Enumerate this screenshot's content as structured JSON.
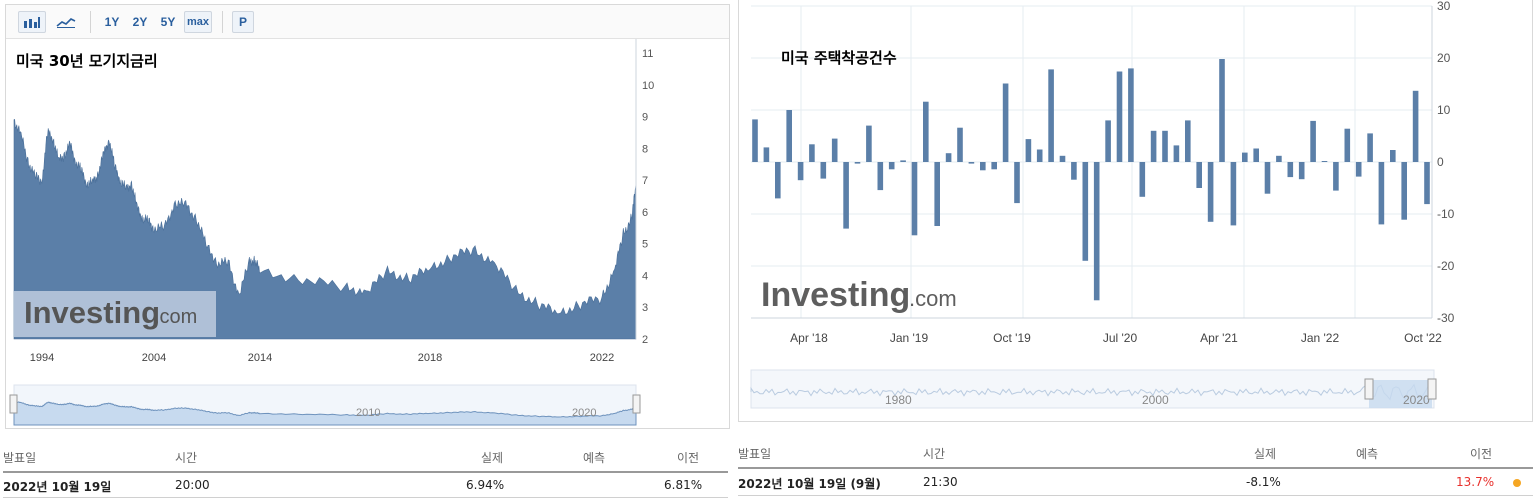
{
  "left": {
    "toolbar": {
      "bar_icon": "bar-chart-icon",
      "line_icon": "line-chart-icon",
      "ranges": [
        "1Y",
        "2Y",
        "5Y",
        "max"
      ],
      "p_label": "P"
    },
    "title": "미국 30년 모기지금리",
    "watermark": {
      "brand": "Investing",
      "suffix": ".com"
    },
    "navigator_labels": [
      "2010",
      "2020"
    ],
    "chart_data": {
      "type": "area",
      "x_ticks": [
        "1994",
        "2004",
        "2014",
        "2018",
        "2022"
      ],
      "y_ticks": [
        "2",
        "3",
        "4",
        "5",
        "6",
        "7",
        "8",
        "9",
        "10",
        "11"
      ],
      "ylim": [
        2,
        11
      ],
      "series_color": "#5b7fa8",
      "x": [
        1992.0,
        1992.5,
        1993.0,
        1993.5,
        1994.0,
        1994.5,
        1995.0,
        1995.5,
        1996.0,
        1996.5,
        1997.0,
        1997.5,
        1998.0,
        1998.5,
        1999.0,
        1999.5,
        2000.0,
        2000.5,
        2001.0,
        2001.5,
        2002.0,
        2002.5,
        2003.0,
        2003.5,
        2004.0,
        2005.0,
        2006.0,
        2007.0,
        2008.0,
        2009.0,
        2010.0,
        2011.0,
        2012.0,
        2013.0,
        2013.5,
        2014.0,
        2015.0,
        2016.0,
        2016.5,
        2017.0,
        2017.5,
        2018.0,
        2018.5,
        2019.0,
        2019.5,
        2020.0,
        2020.5,
        2021.0,
        2021.5,
        2022.0,
        2022.3,
        2022.5,
        2022.7,
        2022.8
      ],
      "values": [
        8.9,
        8.4,
        7.6,
        7.1,
        7.0,
        8.5,
        8.3,
        7.6,
        7.8,
        8.1,
        7.6,
        7.3,
        6.9,
        6.9,
        7.2,
        7.8,
        8.3,
        7.4,
        7.0,
        6.7,
        6.9,
        6.1,
        5.8,
        5.7,
        5.5,
        5.5,
        6.3,
        6.2,
        5.8,
        4.9,
        4.4,
        4.4,
        3.4,
        4.4,
        4.5,
        4.1,
        3.9,
        3.6,
        3.5,
        4.1,
        3.9,
        4.2,
        4.6,
        4.8,
        4.4,
        3.5,
        3.1,
        2.8,
        3.1,
        3.3,
        4.2,
        5.3,
        5.8,
        6.9
      ]
    },
    "table": {
      "headers": [
        "발표일",
        "시간",
        "실제",
        "예측",
        "이전"
      ],
      "row": [
        "2022년 10월 19일",
        "20:00",
        "6.94%",
        "",
        "6.81%"
      ]
    }
  },
  "right": {
    "title": "미국 주택착공건수",
    "watermark": {
      "brand": "Investing",
      "suffix": ".com"
    },
    "navigator_labels": [
      "1980",
      "2000",
      "2020"
    ],
    "chart_data": {
      "type": "bar",
      "x_ticks": [
        "Apr '18",
        "Jan '19",
        "Oct '19",
        "Jul '20",
        "Apr '21",
        "Jan '22",
        "Oct '22"
      ],
      "y_ticks": [
        "30",
        "20",
        "10",
        "0",
        "-10",
        "-20",
        "-30"
      ],
      "ylim": [
        -30,
        30
      ],
      "series_color": "#5b7fa8",
      "values": [
        8.2,
        2.8,
        -7.0,
        10.0,
        -3.5,
        3.4,
        -3.2,
        4.5,
        -12.8,
        -0.3,
        7.0,
        -5.4,
        -1.4,
        0.3,
        -14.1,
        11.6,
        -12.3,
        1.7,
        6.6,
        -0.3,
        -1.6,
        -1.4,
        15.1,
        -7.9,
        4.4,
        2.4,
        17.8,
        1.2,
        -3.4,
        -19.0,
        -26.6,
        8.0,
        17.4,
        18.0,
        -6.7,
        6.0,
        6.0,
        3.2,
        8.0,
        -5.0,
        -11.5,
        19.8,
        -12.2,
        1.8,
        2.6,
        -6.1,
        1.2,
        -2.9,
        -3.3,
        7.9,
        0.2,
        -5.5,
        6.4,
        -2.8,
        5.5,
        -12.0,
        2.3,
        -11.1,
        13.7,
        -8.1
      ]
    },
    "table": {
      "headers": [
        "발표일",
        "시간",
        "실제",
        "예측",
        "이전"
      ],
      "row": [
        "2022년 10월 19일 (9월)",
        "21:30",
        "-8.1%",
        "",
        "13.7%"
      ],
      "prev_color": "#e8302c"
    }
  }
}
